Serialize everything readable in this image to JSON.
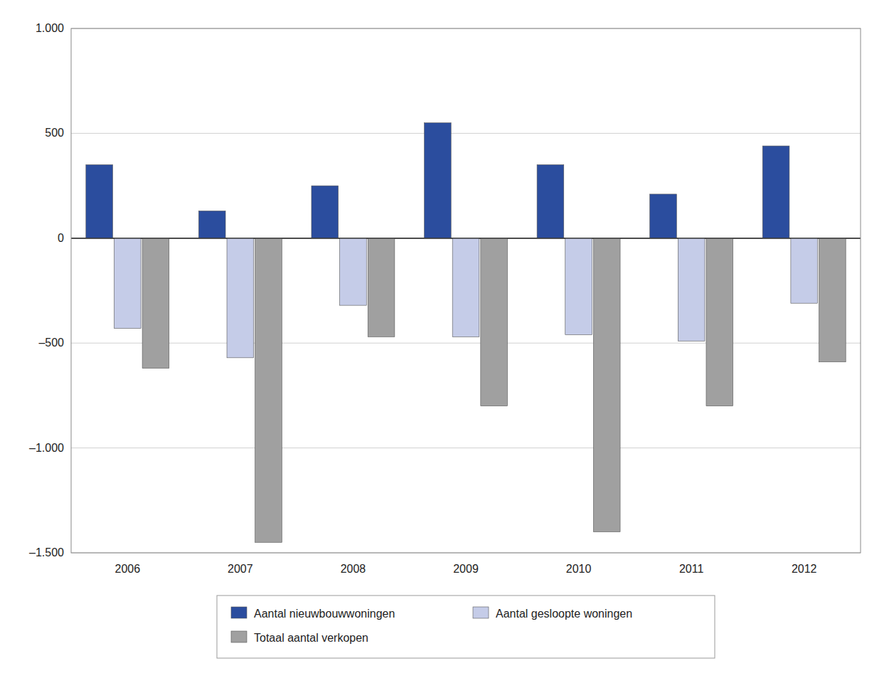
{
  "chart_data": {
    "type": "bar",
    "categories": [
      "2006",
      "2007",
      "2008",
      "2009",
      "2010",
      "2011",
      "2012"
    ],
    "series": [
      {
        "name": "Aantal nieuwbouwwoningen",
        "color": "#2b4d9e",
        "values": [
          350,
          130,
          250,
          550,
          350,
          210,
          440
        ]
      },
      {
        "name": "Aantal gesloopte woningen",
        "color": "#c5cce8",
        "values": [
          -430,
          -570,
          -320,
          -470,
          -460,
          -490,
          -310
        ]
      },
      {
        "name": "Totaal aantal verkopen",
        "color": "#a0a0a0",
        "values": [
          -620,
          -1450,
          -470,
          -800,
          -1400,
          -800,
          -590
        ]
      }
    ],
    "ylim": [
      -1500,
      1000
    ],
    "yticks": [
      {
        "value": -1500,
        "label": "–1.500"
      },
      {
        "value": -1000,
        "label": "–1.000"
      },
      {
        "value": -500,
        "label": "–500"
      },
      0,
      500,
      {
        "value": 1000,
        "label": "1.000"
      }
    ],
    "grid": true,
    "legend": "bottom"
  }
}
